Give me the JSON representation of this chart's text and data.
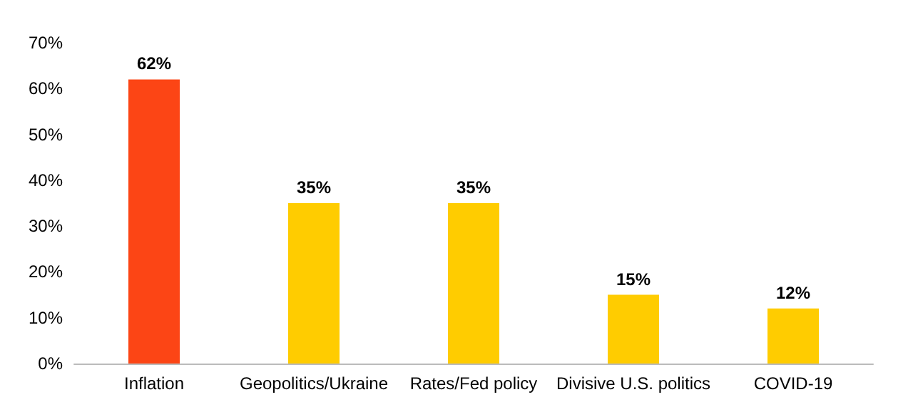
{
  "chart_data": {
    "type": "bar",
    "categories": [
      "Inflation",
      "Geopolitics/Ukraine",
      "Rates/Fed policy",
      "Divisive U.S. politics",
      "COVID-19"
    ],
    "values": [
      62,
      35,
      35,
      15,
      12
    ],
    "colors": [
      "#fc4515",
      "#ffcc00",
      "#ffcc00",
      "#ffcc00",
      "#ffcc00"
    ],
    "value_labels": [
      "62%",
      "35%",
      "35%",
      "15%",
      "12%"
    ],
    "ylim": [
      0,
      70
    ],
    "yticks": [
      {
        "value": 0,
        "label": "0%"
      },
      {
        "value": 10,
        "label": "10%"
      },
      {
        "value": 20,
        "label": "20%"
      },
      {
        "value": 30,
        "label": "30%"
      },
      {
        "value": 40,
        "label": "40%"
      },
      {
        "value": 50,
        "label": "50%"
      },
      {
        "value": 60,
        "label": "60%"
      },
      {
        "value": 70,
        "label": "70%"
      }
    ],
    "grid": false
  }
}
